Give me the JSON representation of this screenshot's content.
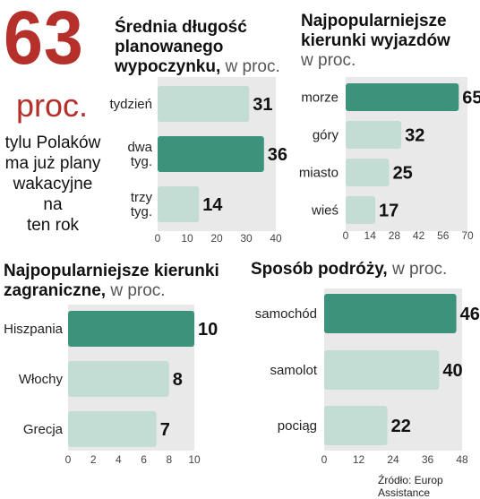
{
  "headline": {
    "value": "63",
    "unit": "proc.",
    "desc_lines": [
      "tylu Polaków",
      "ma już plany",
      "wakacyjne",
      "na",
      "ten rok"
    ]
  },
  "colors": {
    "highlight": "#3d927c",
    "bar": "#c3ddd5",
    "panel": "#e9e9e9",
    "accent": "#b5302a"
  },
  "source": "Źródło: Europ Assistance",
  "chart_data": [
    {
      "type": "bar",
      "orientation": "horizontal",
      "title_bold": [
        "Średnia długość",
        "planowanego",
        "wypoczynku,"
      ],
      "title_unit": "w proc.",
      "categories": [
        [
          "tydzień"
        ],
        [
          "dwa",
          "tyg."
        ],
        [
          "trzy",
          "tyg."
        ]
      ],
      "values": [
        31,
        36,
        14
      ],
      "highlight_index": 1,
      "ticks": [
        0,
        10,
        20,
        30,
        40
      ],
      "xlim": [
        0,
        40
      ]
    },
    {
      "type": "bar",
      "orientation": "horizontal",
      "title_bold": [
        "Najpopularniejsze",
        "kierunki wyjazdów"
      ],
      "title_unit": "w proc.",
      "categories": [
        [
          "morze"
        ],
        [
          "góry"
        ],
        [
          "miasto"
        ],
        [
          "wieś"
        ]
      ],
      "values": [
        65,
        32,
        25,
        17
      ],
      "highlight_index": 0,
      "ticks": [
        0,
        14,
        28,
        42,
        56,
        70
      ],
      "xlim": [
        0,
        70
      ]
    },
    {
      "type": "bar",
      "orientation": "horizontal",
      "title_bold": [
        "Najpopularniejsze kierunki",
        "zagraniczne,"
      ],
      "title_unit": "w proc.",
      "categories": [
        [
          "Hiszpania"
        ],
        [
          "Włochy"
        ],
        [
          "Grecja"
        ]
      ],
      "values": [
        10,
        8,
        7
      ],
      "highlight_index": 0,
      "ticks": [
        0,
        2,
        4,
        6,
        8,
        10
      ],
      "xlim": [
        0,
        10
      ]
    },
    {
      "type": "bar",
      "orientation": "horizontal",
      "title_bold": [
        "Sposób podróży,"
      ],
      "title_unit": "w proc.",
      "categories": [
        [
          "samochód"
        ],
        [
          "samolot"
        ],
        [
          "pociąg"
        ]
      ],
      "values": [
        46,
        40,
        22
      ],
      "highlight_index": 0,
      "ticks": [
        0,
        12,
        24,
        36,
        48
      ],
      "xlim": [
        0,
        48
      ]
    }
  ]
}
